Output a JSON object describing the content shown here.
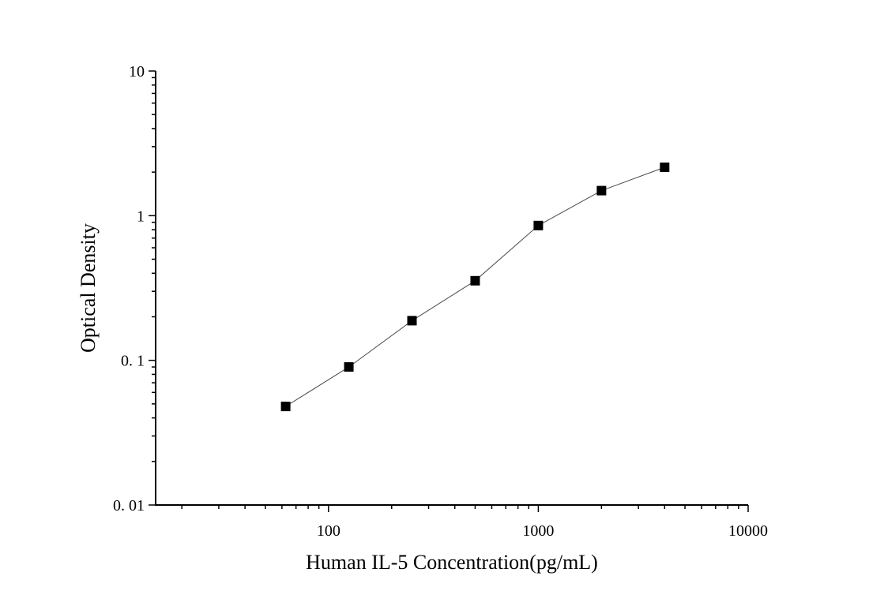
{
  "chart_data": {
    "type": "scatter",
    "xlabel": "Human IL-5 Concentration(pg/mL)",
    "ylabel": "Optical Density",
    "x_scale": "log",
    "y_scale": "log",
    "xlim": [
      15,
      10000
    ],
    "ylim": [
      0.01,
      10
    ],
    "x_ticks": [
      {
        "value": 100,
        "label": "100"
      },
      {
        "value": 1000,
        "label": "1000"
      },
      {
        "value": 10000,
        "label": "10000"
      }
    ],
    "y_ticks": [
      {
        "value": 0.01,
        "label": "0. 01"
      },
      {
        "value": 0.1,
        "label": "0. 1"
      },
      {
        "value": 1,
        "label": "1"
      },
      {
        "value": 10,
        "label": "10"
      }
    ],
    "grid": false,
    "legend": "none",
    "marker_color": "#000000",
    "line_color": "#4a4a4a",
    "series": [
      {
        "points": [
          {
            "x": 62.5,
            "y": 0.048
          },
          {
            "x": 125,
            "y": 0.09
          },
          {
            "x": 250,
            "y": 0.188
          },
          {
            "x": 500,
            "y": 0.355
          },
          {
            "x": 1000,
            "y": 0.855
          },
          {
            "x": 2000,
            "y": 1.49
          },
          {
            "x": 4000,
            "y": 2.16
          }
        ]
      }
    ]
  }
}
